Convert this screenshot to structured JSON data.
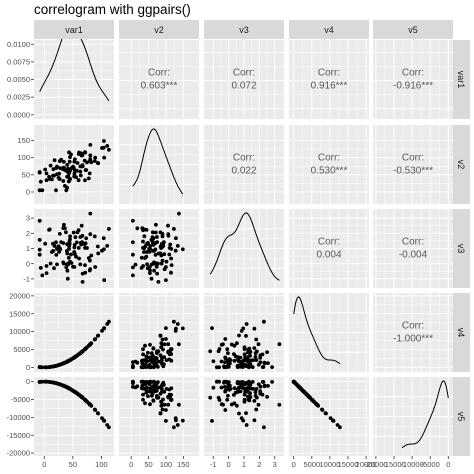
{
  "title": "correlogram with ggpairs()",
  "chart_data": {
    "type": "scatter-matrix",
    "title": "correlogram with ggpairs()",
    "variables": [
      "var1",
      "v2",
      "v3",
      "v4",
      "v5"
    ],
    "axis_ticks": {
      "var1": [
        0,
        50,
        100
      ],
      "v2": [
        0,
        50,
        100,
        150
      ],
      "v3": [
        -1,
        0,
        1,
        2,
        3
      ],
      "v4": [
        0,
        5000,
        10000,
        15000,
        20000
      ],
      "v5": [
        -20000,
        -15000,
        -10000,
        -5000,
        0
      ]
    },
    "axis_tick_labels": {
      "var1": [
        "0",
        "50",
        "100"
      ],
      "v2": [
        "0",
        "50",
        "100",
        "150"
      ],
      "v3": [
        "-1",
        "0",
        "1",
        "2",
        "3"
      ],
      "v4": [
        "0",
        "5000",
        "10000",
        "15000",
        "20000"
      ],
      "v5": [
        "-20000",
        "-15000",
        "-10000",
        "-5000",
        "0"
      ]
    },
    "density_y_ticks": [
      "0.0000",
      "0.0025",
      "0.0050",
      "0.0075",
      "0.0100"
    ],
    "density_y_values": [
      0,
      0.0025,
      0.005,
      0.0075,
      0.01
    ],
    "correlation_label": "Corr:",
    "correlations": [
      {
        "row": "var1",
        "col": "v2",
        "value": "0.603***"
      },
      {
        "row": "var1",
        "col": "v3",
        "value": "0.072"
      },
      {
        "row": "var1",
        "col": "v4",
        "value": "0.916***"
      },
      {
        "row": "var1",
        "col": "v5",
        "value": "-0.916***"
      },
      {
        "row": "v2",
        "col": "v3",
        "value": "0.022"
      },
      {
        "row": "v2",
        "col": "v4",
        "value": "0.530***"
      },
      {
        "row": "v2",
        "col": "v5",
        "value": "-0.530***"
      },
      {
        "row": "v3",
        "col": "v4",
        "value": "0.004"
      },
      {
        "row": "v3",
        "col": "v5",
        "value": "-0.004"
      },
      {
        "row": "v4",
        "col": "v5",
        "value": "-1.000***"
      }
    ],
    "grid": true,
    "panel_background": "#ebebeb",
    "strip_background": "#d9d9d9"
  }
}
